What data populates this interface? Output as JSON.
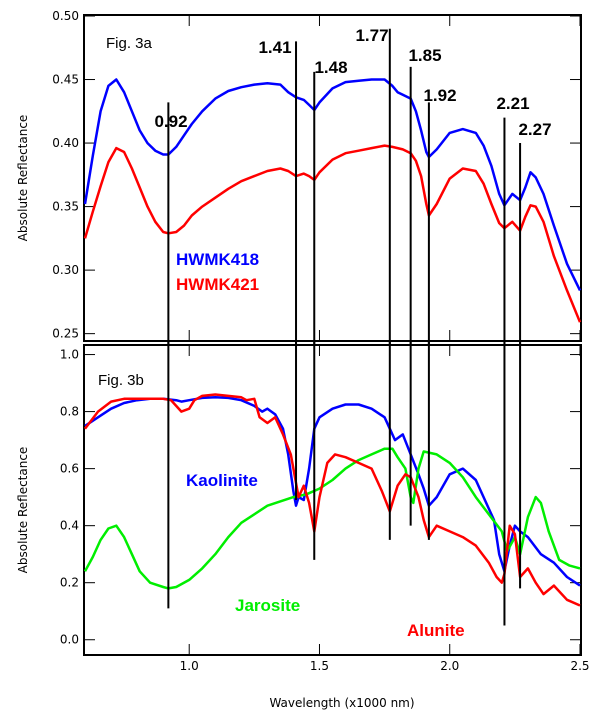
{
  "chart_data": [
    {
      "type": "line",
      "panel_label": "Fig. 3a",
      "xlabel": "Wavelength (x1000 nm)",
      "ylabel": "Absolute Reflectance",
      "xlim": [
        0.6,
        2.5
      ],
      "ylim": [
        0.245,
        0.5
      ],
      "yticks": [
        0.25,
        0.3,
        0.35,
        0.4,
        0.45,
        0.5
      ],
      "ytick_labels": [
        "0.25",
        "0.30",
        "0.35",
        "0.40",
        "0.45",
        "0.50"
      ],
      "xticks": [
        1.0,
        1.5,
        2.0,
        2.5
      ],
      "band_lines": [
        {
          "x": 0.92,
          "label": "0.92",
          "y_top": 0.432
        },
        {
          "x": 1.41,
          "label": "1.41",
          "y_top": 0.48
        },
        {
          "x": 1.48,
          "label": "1.48",
          "y_top": 0.456
        },
        {
          "x": 1.77,
          "label": "1.77",
          "y_top": 0.49
        },
        {
          "x": 1.85,
          "label": "1.85",
          "y_top": 0.46
        },
        {
          "x": 1.92,
          "label": "1.92",
          "y_top": 0.432
        },
        {
          "x": 2.21,
          "label": "2.21",
          "y_top": 0.42
        },
        {
          "x": 2.27,
          "label": "2.27",
          "y_top": 0.4
        }
      ],
      "series": [
        {
          "name": "HWMK418",
          "color": "#0000ff",
          "x": [
            0.6,
            0.63,
            0.66,
            0.69,
            0.72,
            0.75,
            0.78,
            0.81,
            0.84,
            0.87,
            0.9,
            0.92,
            0.95,
            0.98,
            1.01,
            1.05,
            1.1,
            1.15,
            1.2,
            1.25,
            1.3,
            1.35,
            1.38,
            1.41,
            1.44,
            1.46,
            1.48,
            1.5,
            1.55,
            1.6,
            1.65,
            1.7,
            1.75,
            1.78,
            1.8,
            1.82,
            1.85,
            1.87,
            1.89,
            1.91,
            1.92,
            1.95,
            2.0,
            2.05,
            2.1,
            2.13,
            2.16,
            2.19,
            2.21,
            2.24,
            2.27,
            2.29,
            2.31,
            2.33,
            2.36,
            2.4,
            2.45,
            2.5
          ],
          "y": [
            0.352,
            0.39,
            0.425,
            0.445,
            0.45,
            0.44,
            0.425,
            0.41,
            0.4,
            0.394,
            0.391,
            0.391,
            0.397,
            0.406,
            0.415,
            0.425,
            0.435,
            0.441,
            0.444,
            0.446,
            0.447,
            0.446,
            0.44,
            0.436,
            0.434,
            0.43,
            0.426,
            0.432,
            0.443,
            0.448,
            0.449,
            0.45,
            0.45,
            0.445,
            0.44,
            0.438,
            0.435,
            0.425,
            0.41,
            0.393,
            0.389,
            0.395,
            0.408,
            0.411,
            0.408,
            0.398,
            0.382,
            0.36,
            0.351,
            0.36,
            0.355,
            0.365,
            0.377,
            0.373,
            0.36,
            0.335,
            0.305,
            0.284
          ]
        },
        {
          "name": "HWMK421",
          "color": "#ff0000",
          "x": [
            0.6,
            0.63,
            0.66,
            0.69,
            0.72,
            0.75,
            0.78,
            0.81,
            0.84,
            0.87,
            0.9,
            0.92,
            0.95,
            0.98,
            1.01,
            1.05,
            1.1,
            1.15,
            1.2,
            1.25,
            1.3,
            1.35,
            1.38,
            1.41,
            1.44,
            1.46,
            1.48,
            1.5,
            1.55,
            1.6,
            1.65,
            1.7,
            1.75,
            1.78,
            1.8,
            1.82,
            1.85,
            1.87,
            1.89,
            1.91,
            1.92,
            1.95,
            2.0,
            2.05,
            2.1,
            2.13,
            2.16,
            2.19,
            2.21,
            2.24,
            2.27,
            2.29,
            2.31,
            2.33,
            2.36,
            2.4,
            2.45,
            2.5
          ],
          "y": [
            0.325,
            0.346,
            0.366,
            0.385,
            0.396,
            0.393,
            0.38,
            0.365,
            0.35,
            0.338,
            0.33,
            0.329,
            0.33,
            0.335,
            0.343,
            0.35,
            0.357,
            0.364,
            0.37,
            0.374,
            0.378,
            0.38,
            0.378,
            0.374,
            0.376,
            0.374,
            0.371,
            0.377,
            0.387,
            0.392,
            0.394,
            0.396,
            0.398,
            0.397,
            0.396,
            0.395,
            0.392,
            0.386,
            0.374,
            0.352,
            0.343,
            0.352,
            0.372,
            0.38,
            0.378,
            0.368,
            0.352,
            0.337,
            0.333,
            0.338,
            0.331,
            0.342,
            0.351,
            0.35,
            0.338,
            0.311,
            0.284,
            0.259
          ]
        }
      ],
      "labels": [
        {
          "text": "HWMK418",
          "color": "#0000ff"
        },
        {
          "text": "HWMK421",
          "color": "#ff0000"
        }
      ]
    },
    {
      "type": "line",
      "panel_label": "Fig. 3b",
      "xlabel": "Wavelength (x1000 nm)",
      "ylabel": "Absolute Reflectance",
      "xlim": [
        0.6,
        2.5
      ],
      "ylim": [
        -0.05,
        1.03
      ],
      "yticks": [
        0.0,
        0.2,
        0.4,
        0.6,
        0.8,
        1.0
      ],
      "ytick_labels": [
        "0.0",
        "0.2",
        "0.4",
        "0.6",
        "0.8",
        "1.0"
      ],
      "xticks": [
        1.0,
        1.5,
        2.0,
        2.5
      ],
      "xtick_labels": [
        "1.0",
        "1.5",
        "2.0",
        "2.5"
      ],
      "band_lines": [
        {
          "x": 0.92,
          "y_bottom": 0.11
        },
        {
          "x": 1.41,
          "y_bottom": 0.49
        },
        {
          "x": 1.48,
          "y_bottom": 0.28
        },
        {
          "x": 1.77,
          "y_bottom": 0.35
        },
        {
          "x": 1.85,
          "y_bottom": 0.4
        },
        {
          "x": 1.92,
          "y_bottom": 0.35
        },
        {
          "x": 2.21,
          "y_bottom": 0.05
        },
        {
          "x": 2.27,
          "y_bottom": 0.18
        }
      ],
      "series": [
        {
          "name": "Kaolinite",
          "color": "#0000ff",
          "x": [
            0.6,
            0.65,
            0.7,
            0.75,
            0.8,
            0.85,
            0.9,
            0.95,
            0.97,
            1.0,
            1.03,
            1.05,
            1.1,
            1.15,
            1.2,
            1.25,
            1.28,
            1.3,
            1.33,
            1.36,
            1.38,
            1.4,
            1.41,
            1.42,
            1.44,
            1.46,
            1.48,
            1.5,
            1.55,
            1.6,
            1.65,
            1.7,
            1.75,
            1.77,
            1.79,
            1.82,
            1.85,
            1.88,
            1.9,
            1.92,
            1.95,
            2.0,
            2.05,
            2.1,
            2.15,
            2.17,
            2.19,
            2.21,
            2.23,
            2.25,
            2.27,
            2.3,
            2.35,
            2.4,
            2.45,
            2.5
          ],
          "y": [
            0.75,
            0.78,
            0.81,
            0.83,
            0.84,
            0.845,
            0.845,
            0.84,
            0.835,
            0.84,
            0.845,
            0.848,
            0.85,
            0.848,
            0.84,
            0.82,
            0.8,
            0.81,
            0.79,
            0.74,
            0.65,
            0.52,
            0.47,
            0.5,
            0.49,
            0.6,
            0.74,
            0.78,
            0.81,
            0.825,
            0.825,
            0.81,
            0.78,
            0.74,
            0.7,
            0.72,
            0.65,
            0.58,
            0.53,
            0.47,
            0.5,
            0.58,
            0.6,
            0.56,
            0.46,
            0.42,
            0.3,
            0.24,
            0.33,
            0.4,
            0.38,
            0.36,
            0.3,
            0.27,
            0.22,
            0.19
          ]
        },
        {
          "name": "Jarosite",
          "color": "#00ee00",
          "x": [
            0.6,
            0.63,
            0.66,
            0.69,
            0.72,
            0.75,
            0.78,
            0.81,
            0.85,
            0.9,
            0.92,
            0.95,
            1.0,
            1.05,
            1.1,
            1.15,
            1.2,
            1.3,
            1.4,
            1.45,
            1.5,
            1.55,
            1.6,
            1.65,
            1.7,
            1.75,
            1.78,
            1.8,
            1.83,
            1.85,
            1.86,
            1.88,
            1.9,
            1.95,
            2.0,
            2.05,
            2.1,
            2.15,
            2.2,
            2.22,
            2.25,
            2.27,
            2.3,
            2.33,
            2.35,
            2.38,
            2.42,
            2.46,
            2.5
          ],
          "y": [
            0.24,
            0.29,
            0.35,
            0.39,
            0.4,
            0.36,
            0.3,
            0.24,
            0.2,
            0.185,
            0.18,
            0.185,
            0.21,
            0.25,
            0.3,
            0.36,
            0.41,
            0.47,
            0.5,
            0.51,
            0.53,
            0.56,
            0.6,
            0.63,
            0.65,
            0.67,
            0.67,
            0.64,
            0.6,
            0.5,
            0.48,
            0.6,
            0.66,
            0.65,
            0.62,
            0.57,
            0.5,
            0.44,
            0.38,
            0.31,
            0.36,
            0.3,
            0.43,
            0.5,
            0.48,
            0.38,
            0.28,
            0.26,
            0.25
          ]
        },
        {
          "name": "Alunite",
          "color": "#ff0000",
          "x": [
            0.6,
            0.65,
            0.7,
            0.75,
            0.8,
            0.85,
            0.9,
            0.93,
            0.95,
            0.97,
            1.0,
            1.02,
            1.05,
            1.1,
            1.15,
            1.2,
            1.22,
            1.25,
            1.27,
            1.3,
            1.33,
            1.36,
            1.39,
            1.42,
            1.44,
            1.46,
            1.48,
            1.5,
            1.53,
            1.56,
            1.6,
            1.65,
            1.7,
            1.74,
            1.77,
            1.8,
            1.83,
            1.85,
            1.88,
            1.9,
            1.92,
            1.95,
            2.0,
            2.05,
            2.1,
            2.15,
            2.18,
            2.2,
            2.21,
            2.23,
            2.25,
            2.27,
            2.3,
            2.33,
            2.36,
            2.4,
            2.45,
            2.5
          ],
          "y": [
            0.74,
            0.8,
            0.835,
            0.845,
            0.845,
            0.845,
            0.845,
            0.84,
            0.82,
            0.8,
            0.81,
            0.84,
            0.855,
            0.86,
            0.855,
            0.85,
            0.84,
            0.845,
            0.78,
            0.76,
            0.78,
            0.72,
            0.65,
            0.5,
            0.54,
            0.48,
            0.38,
            0.5,
            0.62,
            0.65,
            0.64,
            0.62,
            0.6,
            0.52,
            0.45,
            0.54,
            0.58,
            0.57,
            0.5,
            0.42,
            0.36,
            0.4,
            0.38,
            0.36,
            0.33,
            0.27,
            0.22,
            0.2,
            0.23,
            0.4,
            0.37,
            0.22,
            0.25,
            0.2,
            0.16,
            0.19,
            0.14,
            0.12
          ]
        }
      ],
      "labels": [
        {
          "text": "Kaolinite",
          "color": "#0000ff"
        },
        {
          "text": "Jarosite",
          "color": "#00ee00"
        },
        {
          "text": "Alunite",
          "color": "#ff0000"
        }
      ]
    }
  ],
  "xlabel_main": "Wavelength (x1000 nm)"
}
